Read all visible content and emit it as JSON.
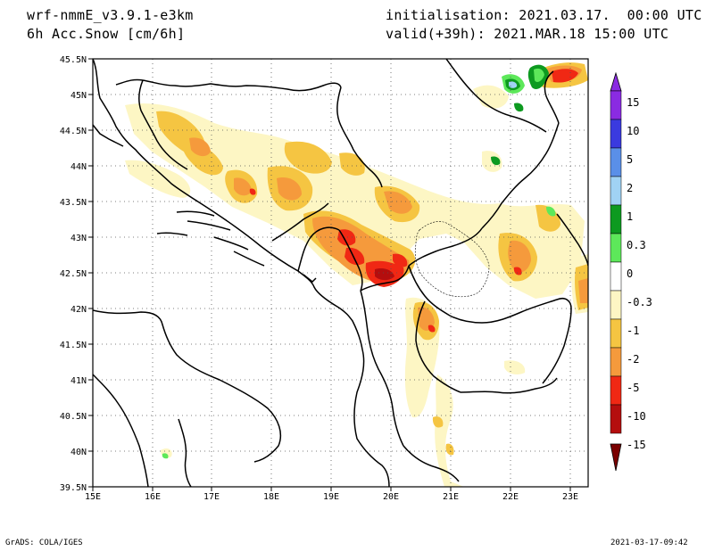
{
  "header": {
    "model": "wrf-nmmE_v3.9.1-e3km",
    "variable": "6h Acc.Snow [cm/6h]",
    "initialisation": "initialisation: 2021.03.17.  00:00 UTC",
    "valid": "valid(+39h): 2021.MAR.18 15:00 UTC"
  },
  "map": {
    "lon_range": [
      15,
      23.3
    ],
    "lat_range": [
      39.5,
      45.5
    ],
    "lon_ticks": [
      "15E",
      "16E",
      "17E",
      "18E",
      "19E",
      "20E",
      "21E",
      "22E",
      "23E"
    ],
    "lat_ticks": [
      "45.5N",
      "45N",
      "44.5N",
      "44N",
      "43.5N",
      "43N",
      "42.5N",
      "42N",
      "41.5N",
      "41N",
      "40.5N",
      "40N",
      "39.5N"
    ],
    "grid": "dotted"
  },
  "colorbar": {
    "labels": [
      "15",
      "10",
      "5",
      "2",
      "1",
      "0.3",
      "0",
      "-0.3",
      "-1",
      "-2",
      "-5",
      "-10",
      "-15"
    ],
    "colors": [
      "#8a2be2",
      "#3a3adf",
      "#5a8fe8",
      "#a0d2f4",
      "#0d9a20",
      "#5de85a",
      "#ffffff",
      "#fdf6c4",
      "#f5c542",
      "#f59a3c",
      "#f02814",
      "#b40e0e",
      "#7a0000"
    ]
  },
  "footer": {
    "left": "GrADS: COLA/IGES",
    "right": "2021-03-17-09:42"
  }
}
